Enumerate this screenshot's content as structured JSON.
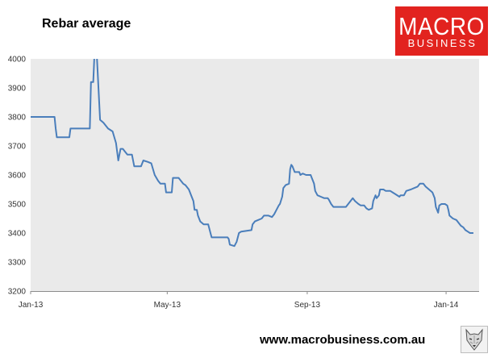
{
  "logo": {
    "line1": "MACRO",
    "line2": "BUSINESS"
  },
  "footer": {
    "url": "www.macrobusiness.com.au"
  },
  "icons": {
    "footer_logo": "wolf-logo-icon"
  },
  "colors": {
    "plot_bg": "#eaeaea",
    "series_line": "#4a7ebb",
    "axis": "#8c8c8c",
    "logo_red": "#e2231f"
  },
  "chart_data": {
    "type": "line",
    "title": "Rebar average",
    "xlabel": "",
    "ylabel": "",
    "ylim": [
      3200,
      4000
    ],
    "yticks": [
      4000,
      3900,
      3800,
      3700,
      3600,
      3500,
      3400,
      3300,
      3200
    ],
    "xlim": [
      "2013-01-01",
      "2014-01-30"
    ],
    "xticks": [
      {
        "label": "Jan-13",
        "date": "2013-01-01"
      },
      {
        "label": "May-13",
        "date": "2013-05-01"
      },
      {
        "label": "Sep-13",
        "date": "2013-09-01"
      },
      {
        "label": "Jan-14",
        "date": "2014-01-01"
      }
    ],
    "grid": false,
    "legend": "none",
    "series": [
      {
        "points": [
          [
            "2013-01-01",
            3800
          ],
          [
            "2013-01-22",
            3800
          ],
          [
            "2013-01-23",
            3760
          ],
          [
            "2013-01-24",
            3730
          ],
          [
            "2013-02-04",
            3730
          ],
          [
            "2013-02-05",
            3760
          ],
          [
            "2013-02-22",
            3760
          ],
          [
            "2013-02-23",
            3920
          ],
          [
            "2013-02-25",
            3920
          ],
          [
            "2013-02-27",
            4100
          ],
          [
            "2013-03-03",
            3790
          ],
          [
            "2013-03-06",
            3780
          ],
          [
            "2013-03-10",
            3760
          ],
          [
            "2013-03-14",
            3750
          ],
          [
            "2013-03-17",
            3710
          ],
          [
            "2013-03-18",
            3680
          ],
          [
            "2013-03-19",
            3650
          ],
          [
            "2013-03-21",
            3690
          ],
          [
            "2013-03-23",
            3690
          ],
          [
            "2013-03-25",
            3680
          ],
          [
            "2013-03-27",
            3670
          ],
          [
            "2013-03-31",
            3670
          ],
          [
            "2013-04-02",
            3630
          ],
          [
            "2013-04-08",
            3630
          ],
          [
            "2013-04-10",
            3650
          ],
          [
            "2013-04-14",
            3645
          ],
          [
            "2013-04-17",
            3640
          ],
          [
            "2013-04-20",
            3600
          ],
          [
            "2013-04-23",
            3580
          ],
          [
            "2013-04-25",
            3570
          ],
          [
            "2013-04-29",
            3570
          ],
          [
            "2013-04-30",
            3540
          ],
          [
            "2013-05-05",
            3540
          ],
          [
            "2013-05-06",
            3590
          ],
          [
            "2013-05-11",
            3590
          ],
          [
            "2013-05-15",
            3570
          ],
          [
            "2013-05-17",
            3565
          ],
          [
            "2013-05-20",
            3550
          ],
          [
            "2013-05-22",
            3530
          ],
          [
            "2013-05-24",
            3510
          ],
          [
            "2013-05-25",
            3480
          ],
          [
            "2013-05-27",
            3480
          ],
          [
            "2013-05-28",
            3460
          ],
          [
            "2013-05-30",
            3440
          ],
          [
            "2013-06-02",
            3430
          ],
          [
            "2013-06-06",
            3430
          ],
          [
            "2013-06-08",
            3400
          ],
          [
            "2013-06-09",
            3385
          ],
          [
            "2013-06-23",
            3385
          ],
          [
            "2013-06-24",
            3380
          ],
          [
            "2013-06-25",
            3360
          ],
          [
            "2013-06-29",
            3355
          ],
          [
            "2013-07-01",
            3370
          ],
          [
            "2013-07-03",
            3400
          ],
          [
            "2013-07-05",
            3405
          ],
          [
            "2013-07-14",
            3410
          ],
          [
            "2013-07-15",
            3430
          ],
          [
            "2013-07-17",
            3440
          ],
          [
            "2013-07-20",
            3445
          ],
          [
            "2013-07-23",
            3450
          ],
          [
            "2013-07-25",
            3460
          ],
          [
            "2013-07-29",
            3460
          ],
          [
            "2013-08-01",
            3455
          ],
          [
            "2013-08-03",
            3465
          ],
          [
            "2013-08-05",
            3480
          ],
          [
            "2013-08-07",
            3495
          ],
          [
            "2013-08-08",
            3500
          ],
          [
            "2013-08-10",
            3525
          ],
          [
            "2013-08-11",
            3555
          ],
          [
            "2013-08-13",
            3565
          ],
          [
            "2013-08-16",
            3570
          ],
          [
            "2013-08-17",
            3620
          ],
          [
            "2013-08-18",
            3635
          ],
          [
            "2013-08-19",
            3630
          ],
          [
            "2013-08-21",
            3610
          ],
          [
            "2013-08-25",
            3610
          ],
          [
            "2013-08-26",
            3600
          ],
          [
            "2013-08-28",
            3605
          ],
          [
            "2013-08-31",
            3600
          ],
          [
            "2013-09-04",
            3600
          ],
          [
            "2013-09-05",
            3590
          ],
          [
            "2013-09-07",
            3570
          ],
          [
            "2013-09-08",
            3545
          ],
          [
            "2013-09-10",
            3530
          ],
          [
            "2013-09-13",
            3525
          ],
          [
            "2013-09-16",
            3520
          ],
          [
            "2013-09-19",
            3520
          ],
          [
            "2013-09-20",
            3515
          ],
          [
            "2013-09-22",
            3500
          ],
          [
            "2013-09-24",
            3490
          ],
          [
            "2013-10-05",
            3490
          ],
          [
            "2013-10-07",
            3500
          ],
          [
            "2013-10-09",
            3510
          ],
          [
            "2013-10-11",
            3520
          ],
          [
            "2013-10-13",
            3510
          ],
          [
            "2013-10-16",
            3500
          ],
          [
            "2013-10-18",
            3495
          ],
          [
            "2013-10-21",
            3495
          ],
          [
            "2013-10-23",
            3485
          ],
          [
            "2013-10-25",
            3480
          ],
          [
            "2013-10-28",
            3485
          ],
          [
            "2013-10-29",
            3510
          ],
          [
            "2013-10-31",
            3530
          ],
          [
            "2013-11-01",
            3520
          ],
          [
            "2013-11-03",
            3530
          ],
          [
            "2013-11-04",
            3550
          ],
          [
            "2013-11-07",
            3550
          ],
          [
            "2013-11-09",
            3545
          ],
          [
            "2013-11-13",
            3545
          ],
          [
            "2013-11-15",
            3540
          ],
          [
            "2013-11-17",
            3535
          ],
          [
            "2013-11-21",
            3525
          ],
          [
            "2013-11-22",
            3530
          ],
          [
            "2013-11-25",
            3530
          ],
          [
            "2013-11-27",
            3545
          ],
          [
            "2013-12-01",
            3550
          ],
          [
            "2013-12-04",
            3555
          ],
          [
            "2013-12-07",
            3560
          ],
          [
            "2013-12-09",
            3570
          ],
          [
            "2013-12-12",
            3570
          ],
          [
            "2013-12-14",
            3560
          ],
          [
            "2013-12-17",
            3550
          ],
          [
            "2013-12-20",
            3540
          ],
          [
            "2013-12-22",
            3520
          ],
          [
            "2013-12-23",
            3490
          ],
          [
            "2013-12-25",
            3470
          ],
          [
            "2013-12-26",
            3495
          ],
          [
            "2013-12-28",
            3500
          ],
          [
            "2013-12-31",
            3500
          ],
          [
            "2014-01-02",
            3495
          ],
          [
            "2014-01-03",
            3480
          ],
          [
            "2014-01-04",
            3460
          ],
          [
            "2014-01-07",
            3450
          ],
          [
            "2014-01-10",
            3445
          ],
          [
            "2014-01-12",
            3435
          ],
          [
            "2014-01-14",
            3425
          ],
          [
            "2014-01-16",
            3420
          ],
          [
            "2014-01-18",
            3410
          ],
          [
            "2014-01-20",
            3405
          ],
          [
            "2014-01-22",
            3400
          ],
          [
            "2014-01-25",
            3400
          ]
        ]
      }
    ]
  }
}
